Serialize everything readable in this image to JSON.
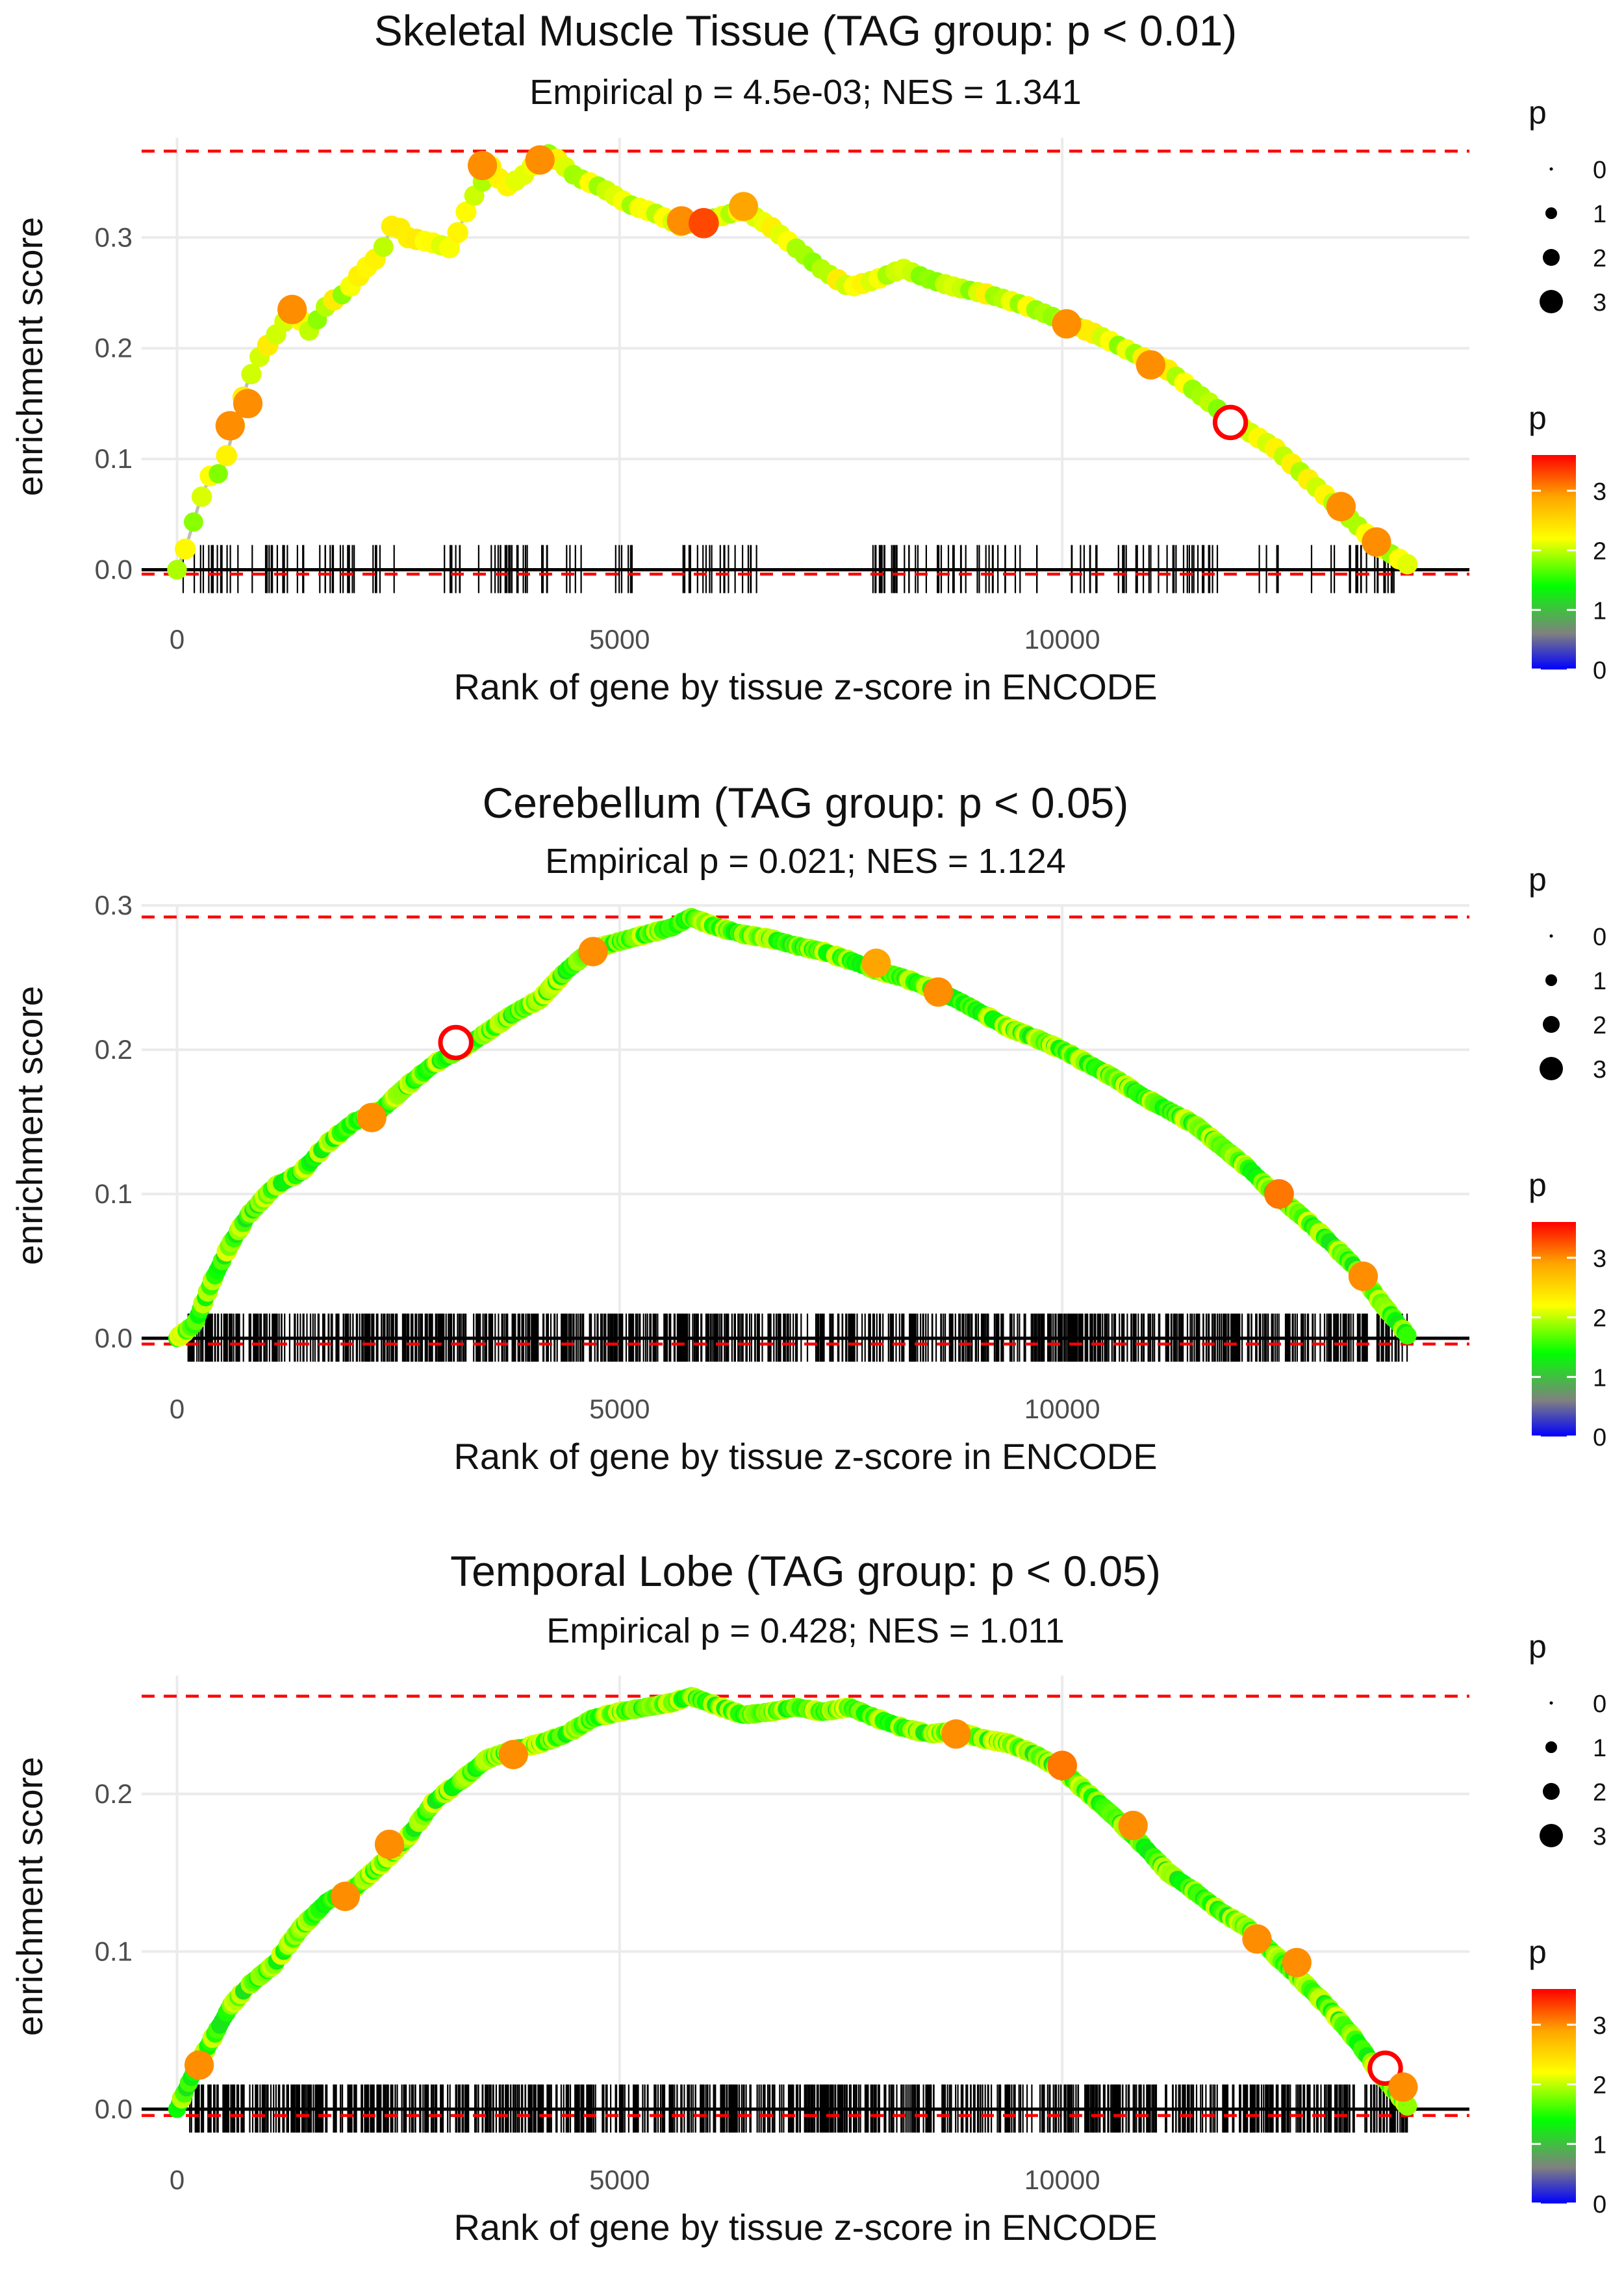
{
  "chart_data": [
    {
      "type": "scatter",
      "title": "Skeletal Muscle Tissue (TAG group: p < 0.01)",
      "subtitle": "Empirical p = 4.5e-03; NES = 1.341",
      "xlabel": "Rank of gene by tissue z-score in ENCODE",
      "ylabel": "enrichment score",
      "xlim": [
        -400,
        14600
      ],
      "ylim": [
        -0.005,
        0.39
      ],
      "xticks": [
        0,
        5000,
        10000
      ],
      "xtick_labels": [
        "0",
        "5000",
        "10000"
      ],
      "yticks": [
        0.0,
        0.1,
        0.2,
        0.3
      ],
      "ytick_labels": [
        "0.0",
        "0.1",
        "0.2",
        "0.3"
      ],
      "max_es": 0.378,
      "min_es": -0.004,
      "rug_style": "sparse",
      "curve": [
        [
          0,
          0
        ],
        [
          100,
          0.02
        ],
        [
          250,
          0.06
        ],
        [
          400,
          0.09
        ],
        [
          500,
          0.085
        ],
        [
          650,
          0.13
        ],
        [
          800,
          0.17
        ],
        [
          950,
          0.195
        ],
        [
          1100,
          0.21
        ],
        [
          1300,
          0.235
        ],
        [
          1500,
          0.215
        ],
        [
          1700,
          0.24
        ],
        [
          1900,
          0.25
        ],
        [
          2100,
          0.27
        ],
        [
          2300,
          0.285
        ],
        [
          2450,
          0.315
        ],
        [
          2600,
          0.3
        ],
        [
          2900,
          0.295
        ],
        [
          3100,
          0.29
        ],
        [
          3300,
          0.33
        ],
        [
          3450,
          0.35
        ],
        [
          3550,
          0.365
        ],
        [
          3700,
          0.345
        ],
        [
          3900,
          0.355
        ],
        [
          4050,
          0.368
        ],
        [
          4150,
          0.378
        ],
        [
          4300,
          0.37
        ],
        [
          4500,
          0.355
        ],
        [
          4800,
          0.345
        ],
        [
          5100,
          0.33
        ],
        [
          5400,
          0.322
        ],
        [
          5700,
          0.31
        ],
        [
          5900,
          0.315
        ],
        [
          6100,
          0.318
        ],
        [
          6400,
          0.325
        ],
        [
          6700,
          0.31
        ],
        [
          7000,
          0.29
        ],
        [
          7300,
          0.27
        ],
        [
          7600,
          0.255
        ],
        [
          7900,
          0.262
        ],
        [
          8200,
          0.272
        ],
        [
          8500,
          0.262
        ],
        [
          8800,
          0.255
        ],
        [
          9200,
          0.248
        ],
        [
          9600,
          0.238
        ],
        [
          10000,
          0.225
        ],
        [
          10400,
          0.212
        ],
        [
          10800,
          0.196
        ],
        [
          11200,
          0.18
        ],
        [
          11600,
          0.155
        ],
        [
          12000,
          0.13
        ],
        [
          12400,
          0.11
        ],
        [
          12800,
          0.08
        ],
        [
          13200,
          0.05
        ],
        [
          13600,
          0.02
        ],
        [
          13900,
          0.005
        ]
      ],
      "highlights": [
        [
          600,
          0.13,
          3.0
        ],
        [
          800,
          0.15,
          3.0
        ],
        [
          1300,
          0.235,
          3.0
        ],
        [
          3450,
          0.365,
          3.0
        ],
        [
          4100,
          0.37,
          3.0
        ],
        [
          5700,
          0.315,
          3.0
        ],
        [
          5950,
          0.313,
          3.3
        ],
        [
          6400,
          0.328,
          2.9
        ],
        [
          10050,
          0.222,
          3.0
        ],
        [
          11000,
          0.185,
          3.0
        ],
        [
          11900,
          0.133,
          3.5
        ],
        [
          13150,
          0.057,
          3.0
        ],
        [
          13550,
          0.025,
          3.0
        ]
      ],
      "p_color_stops": [
        [
          0,
          "#0000ff"
        ],
        [
          0.6,
          "#808080"
        ],
        [
          1.4,
          "#00ff00"
        ],
        [
          2.2,
          "#ffff00"
        ],
        [
          2.9,
          "#ffa500"
        ],
        [
          3.6,
          "#ff0000"
        ]
      ],
      "size_legend": {
        "title": "p",
        "values": [
          0,
          1,
          2,
          3
        ]
      },
      "color_legend": {
        "title": "p",
        "ticks": [
          0,
          1,
          2,
          3
        ],
        "range": [
          0,
          3.6
        ]
      }
    },
    {
      "type": "scatter",
      "title": "Cerebellum (TAG group: p < 0.05)",
      "subtitle": "Empirical p = 0.021; NES = 1.124",
      "xlabel": "Rank of gene by tissue z-score in ENCODE",
      "ylabel": "enrichment score",
      "xlim": [
        -400,
        14600
      ],
      "ylim": [
        -0.005,
        0.3
      ],
      "xticks": [
        0,
        5000,
        10000
      ],
      "xtick_labels": [
        "0",
        "5000",
        "10000"
      ],
      "yticks": [
        0.0,
        0.1,
        0.2,
        0.3
      ],
      "ytick_labels": [
        "0.0",
        "0.1",
        "0.2",
        "0.3"
      ],
      "max_es": 0.292,
      "min_es": -0.004,
      "rug_style": "dense",
      "curve": [
        [
          0,
          0
        ],
        [
          200,
          0.01
        ],
        [
          400,
          0.04
        ],
        [
          600,
          0.065
        ],
        [
          800,
          0.085
        ],
        [
          1100,
          0.105
        ],
        [
          1400,
          0.115
        ],
        [
          1700,
          0.135
        ],
        [
          2000,
          0.15
        ],
        [
          2300,
          0.158
        ],
        [
          2600,
          0.175
        ],
        [
          2900,
          0.19
        ],
        [
          3200,
          0.2
        ],
        [
          3500,
          0.212
        ],
        [
          3800,
          0.225
        ],
        [
          4100,
          0.235
        ],
        [
          4400,
          0.255
        ],
        [
          4700,
          0.27
        ],
        [
          5000,
          0.275
        ],
        [
          5300,
          0.28
        ],
        [
          5600,
          0.285
        ],
        [
          5800,
          0.292
        ],
        [
          6100,
          0.285
        ],
        [
          6400,
          0.28
        ],
        [
          6700,
          0.277
        ],
        [
          7000,
          0.272
        ],
        [
          7300,
          0.268
        ],
        [
          7600,
          0.262
        ],
        [
          7900,
          0.255
        ],
        [
          8200,
          0.25
        ],
        [
          8500,
          0.243
        ],
        [
          8800,
          0.235
        ],
        [
          9100,
          0.225
        ],
        [
          9400,
          0.215
        ],
        [
          9700,
          0.208
        ],
        [
          10000,
          0.2
        ],
        [
          10300,
          0.19
        ],
        [
          10600,
          0.18
        ],
        [
          10900,
          0.168
        ],
        [
          11200,
          0.158
        ],
        [
          11500,
          0.148
        ],
        [
          11800,
          0.133
        ],
        [
          12100,
          0.118
        ],
        [
          12400,
          0.1
        ],
        [
          12700,
          0.085
        ],
        [
          13000,
          0.068
        ],
        [
          13300,
          0.05
        ],
        [
          13600,
          0.025
        ],
        [
          13900,
          0.002
        ]
      ],
      "highlights": [
        [
          3150,
          0.205,
          3.5
        ],
        [
          2200,
          0.153,
          3.0
        ],
        [
          4700,
          0.268,
          3.0
        ],
        [
          7900,
          0.26,
          2.9
        ],
        [
          8600,
          0.24,
          3.0
        ],
        [
          12450,
          0.1,
          3.1
        ],
        [
          13400,
          0.043,
          3.0
        ]
      ],
      "p_color_stops": [
        [
          0,
          "#0000ff"
        ],
        [
          0.6,
          "#808080"
        ],
        [
          1.4,
          "#00ff00"
        ],
        [
          2.2,
          "#ffff00"
        ],
        [
          2.9,
          "#ffa500"
        ],
        [
          3.6,
          "#ff0000"
        ]
      ],
      "size_legend": {
        "title": "p",
        "values": [
          0,
          1,
          2,
          3
        ]
      },
      "color_legend": {
        "title": "p",
        "ticks": [
          0,
          1,
          2,
          3
        ],
        "range": [
          0,
          3.6
        ]
      }
    },
    {
      "type": "scatter",
      "title": "Temporal Lobe (TAG group: p < 0.05)",
      "subtitle": "Empirical p = 0.428; NES = 1.011",
      "xlabel": "Rank of gene by tissue z-score in ENCODE",
      "ylabel": "enrichment score",
      "xlim": [
        -400,
        14600
      ],
      "ylim": [
        -0.005,
        0.275
      ],
      "xticks": [
        0,
        5000,
        10000
      ],
      "xtick_labels": [
        "0",
        "5000",
        "10000"
      ],
      "yticks": [
        0.0,
        0.1,
        0.2
      ],
      "ytick_labels": [
        "0.0",
        "0.1",
        "0.2"
      ],
      "max_es": 0.262,
      "min_es": -0.004,
      "rug_style": "dense",
      "curve": [
        [
          0,
          0
        ],
        [
          200,
          0.025
        ],
        [
          400,
          0.045
        ],
        [
          600,
          0.065
        ],
        [
          800,
          0.078
        ],
        [
          1100,
          0.092
        ],
        [
          1400,
          0.115
        ],
        [
          1700,
          0.132
        ],
        [
          2000,
          0.14
        ],
        [
          2300,
          0.155
        ],
        [
          2600,
          0.172
        ],
        [
          2900,
          0.195
        ],
        [
          3200,
          0.208
        ],
        [
          3500,
          0.222
        ],
        [
          3800,
          0.228
        ],
        [
          4100,
          0.232
        ],
        [
          4400,
          0.238
        ],
        [
          4700,
          0.248
        ],
        [
          5000,
          0.252
        ],
        [
          5300,
          0.255
        ],
        [
          5600,
          0.258
        ],
        [
          5800,
          0.262
        ],
        [
          6100,
          0.256
        ],
        [
          6400,
          0.25
        ],
        [
          6700,
          0.252
        ],
        [
          7000,
          0.255
        ],
        [
          7300,
          0.252
        ],
        [
          7600,
          0.255
        ],
        [
          7900,
          0.248
        ],
        [
          8200,
          0.242
        ],
        [
          8500,
          0.238
        ],
        [
          8800,
          0.24
        ],
        [
          9100,
          0.235
        ],
        [
          9400,
          0.232
        ],
        [
          9700,
          0.225
        ],
        [
          10000,
          0.215
        ],
        [
          10300,
          0.2
        ],
        [
          10600,
          0.185
        ],
        [
          10900,
          0.168
        ],
        [
          11200,
          0.15
        ],
        [
          11500,
          0.138
        ],
        [
          11800,
          0.125
        ],
        [
          12100,
          0.115
        ],
        [
          12400,
          0.098
        ],
        [
          12700,
          0.082
        ],
        [
          13000,
          0.065
        ],
        [
          13300,
          0.045
        ],
        [
          13600,
          0.022
        ],
        [
          13900,
          0.002
        ]
      ],
      "highlights": [
        [
          250,
          0.028,
          3.0
        ],
        [
          2400,
          0.168,
          3.0
        ],
        [
          1900,
          0.135,
          3.0
        ],
        [
          3800,
          0.225,
          3.0
        ],
        [
          8800,
          0.238,
          3.0
        ],
        [
          10000,
          0.218,
          3.1
        ],
        [
          10800,
          0.18,
          3.0
        ],
        [
          12200,
          0.108,
          3.0
        ],
        [
          12650,
          0.093,
          3.0
        ],
        [
          13650,
          0.026,
          3.5
        ],
        [
          13850,
          0.014,
          3.0
        ]
      ],
      "p_color_stops": [
        [
          0,
          "#0000ff"
        ],
        [
          0.6,
          "#808080"
        ],
        [
          1.4,
          "#00ff00"
        ],
        [
          2.2,
          "#ffff00"
        ],
        [
          2.9,
          "#ffa500"
        ],
        [
          3.6,
          "#ff0000"
        ]
      ],
      "size_legend": {
        "title": "p",
        "values": [
          0,
          1,
          2,
          3
        ]
      },
      "color_legend": {
        "title": "p",
        "ticks": [
          0,
          1,
          2,
          3
        ],
        "range": [
          0,
          3.6
        ]
      }
    }
  ]
}
